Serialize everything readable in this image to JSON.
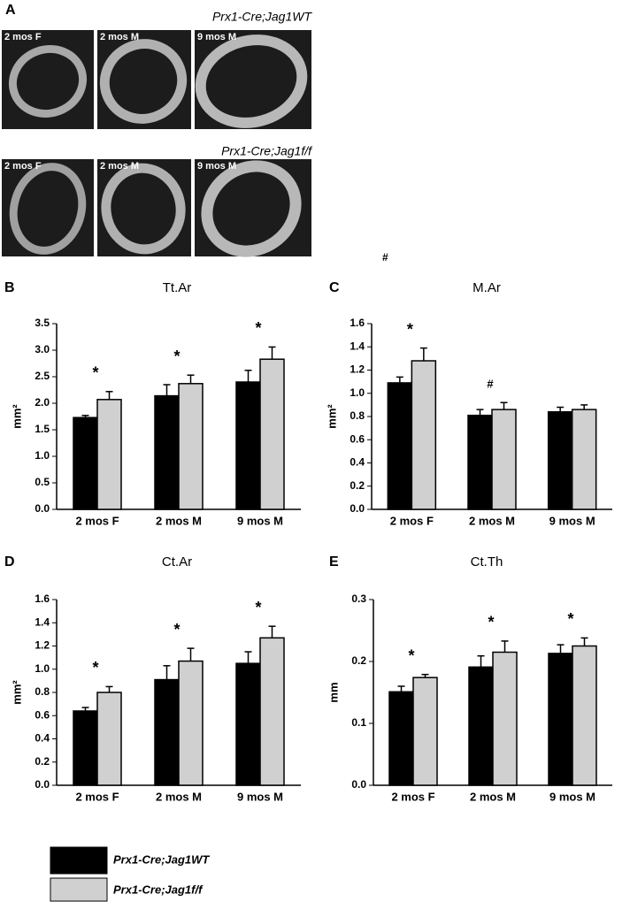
{
  "panel_a": {
    "label": "A",
    "rows": [
      {
        "genotype": "Prx1-Cre;Jag1WT",
        "images": [
          "2 mos F",
          "2 mos M",
          "9 mos M"
        ]
      },
      {
        "genotype": "Prx1-Cre;Jag1f/f",
        "images": [
          "2 mos F",
          "2 mos M",
          "9 mos M"
        ]
      }
    ]
  },
  "stray_mark": "#",
  "chart_data": [
    {
      "type": "bar",
      "panel": "B",
      "title": "Tt.Ar",
      "ylabel": "mm²",
      "categories": [
        "2 mos F",
        "2 mos M",
        "9 mos M"
      ],
      "series": [
        {
          "name": "Prx1-Cre;Jag1WT",
          "color": "#000000",
          "values": [
            1.73,
            2.14,
            2.4
          ],
          "errors": [
            0.04,
            0.21,
            0.22
          ]
        },
        {
          "name": "Prx1-Cre;Jag1f/f",
          "color": "#d0d0d0",
          "values": [
            2.07,
            2.37,
            2.83
          ],
          "errors": [
            0.15,
            0.16,
            0.23
          ]
        }
      ],
      "annotations": [
        "*",
        "*",
        "*"
      ],
      "ylim": [
        0,
        3.5
      ],
      "yticks": [
        {
          "value": 0,
          "label": "0.0"
        },
        0.5,
        {
          "value": 1,
          "label": "1.0"
        },
        1.5,
        {
          "value": 2,
          "label": "2.0"
        },
        2.5,
        {
          "value": 3,
          "label": "3.0"
        },
        3.5
      ]
    },
    {
      "type": "bar",
      "panel": "C",
      "title": "M.Ar",
      "ylabel": "mm²",
      "categories": [
        "2 mos F",
        "2 mos M",
        "9 mos M"
      ],
      "series": [
        {
          "name": "Prx1-Cre;Jag1WT",
          "color": "#000000",
          "values": [
            1.09,
            0.81,
            0.84
          ],
          "errors": [
            0.05,
            0.05,
            0.04
          ]
        },
        {
          "name": "Prx1-Cre;Jag1f/f",
          "color": "#d0d0d0",
          "values": [
            1.28,
            0.86,
            0.86
          ],
          "errors": [
            0.11,
            0.06,
            0.04
          ]
        }
      ],
      "annotations": [
        "*",
        "#",
        null
      ],
      "ylim": [
        0,
        1.6
      ],
      "yticks": [
        {
          "value": 0,
          "label": "0.0"
        },
        0.2,
        0.4,
        0.6,
        0.8,
        {
          "value": 1,
          "label": "1.0"
        },
        1.2,
        1.4,
        1.6
      ]
    },
    {
      "type": "bar",
      "panel": "D",
      "title": "Ct.Ar",
      "ylabel": "mm²",
      "categories": [
        "2 mos F",
        "2 mos M",
        "9 mos M"
      ],
      "series": [
        {
          "name": "Prx1-Cre;Jag1WT",
          "color": "#000000",
          "values": [
            0.64,
            0.91,
            1.05
          ],
          "errors": [
            0.03,
            0.12,
            0.1
          ]
        },
        {
          "name": "Prx1-Cre;Jag1f/f",
          "color": "#d0d0d0",
          "values": [
            0.8,
            1.07,
            1.27
          ],
          "errors": [
            0.05,
            0.11,
            0.1
          ]
        }
      ],
      "annotations": [
        "*",
        "*",
        "*"
      ],
      "ylim": [
        0,
        1.6
      ],
      "yticks": [
        {
          "value": 0,
          "label": "0.0"
        },
        0.2,
        0.4,
        0.6,
        0.8,
        {
          "value": 1,
          "label": "1.0"
        },
        1.2,
        1.4,
        1.6
      ]
    },
    {
      "type": "bar",
      "panel": "E",
      "title": "Ct.Th",
      "ylabel": "mm",
      "categories": [
        "2 mos F",
        "2 mos M",
        "9 mos M"
      ],
      "series": [
        {
          "name": "Prx1-Cre;Jag1WT",
          "color": "#000000",
          "values": [
            0.151,
            0.191,
            0.213
          ],
          "errors": [
            0.009,
            0.018,
            0.014
          ]
        },
        {
          "name": "Prx1-Cre;Jag1f/f",
          "color": "#d0d0d0",
          "values": [
            0.174,
            0.215,
            0.225
          ],
          "errors": [
            0.005,
            0.018,
            0.013
          ]
        }
      ],
      "annotations": [
        "*",
        "*",
        "*"
      ],
      "ylim": [
        0,
        0.3
      ],
      "yticks": [
        {
          "value": 0,
          "label": "0.0"
        },
        0.1,
        0.2,
        0.3
      ]
    }
  ]
}
